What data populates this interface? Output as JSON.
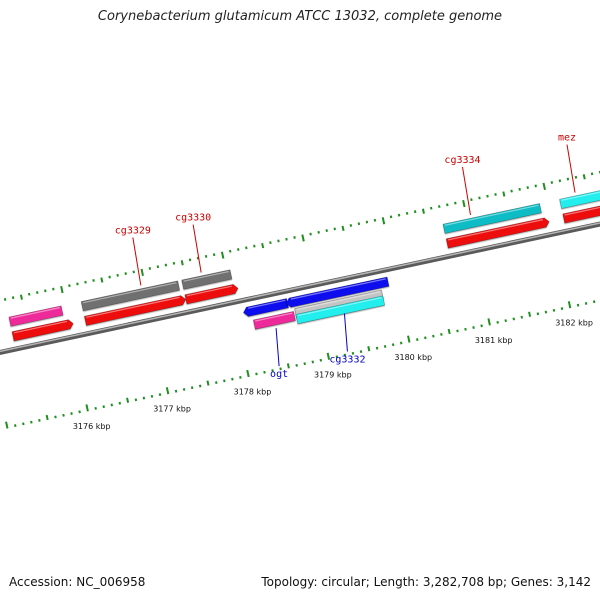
{
  "title": "Corynebacterium glutamicum ATCC 13032, complete genome",
  "footer": {
    "accession": "Accession: NC_006958",
    "summary": "Topology: circular; Length: 3,282,708 bp; Genes: 3,142"
  },
  "colors": {
    "backbone": "#8a8a8a",
    "tick": "#1f8f1f",
    "label_forward": "#cc0000",
    "label_reverse": "#0000cc",
    "cds_red": "#ee1111",
    "pink": "#ee2a9a",
    "grey": "#6f6f6f",
    "light_grey": "#c4c4c4",
    "teal": "#11bcc4",
    "cyan": "#22eeee",
    "blue": "#1111ee"
  },
  "scale": {
    "unit": "kbp",
    "labels": [
      {
        "kbp": 3176,
        "text": "3176 kbp"
      },
      {
        "kbp": 3177,
        "text": "3177 kbp"
      },
      {
        "kbp": 3178,
        "text": "3178 kbp"
      },
      {
        "kbp": 3179,
        "text": "3179 kbp"
      },
      {
        "kbp": 3180,
        "text": "3180 kbp"
      },
      {
        "kbp": 3181,
        "text": "3181 kbp"
      },
      {
        "kbp": 3182,
        "text": "3182 kbp"
      }
    ]
  },
  "features": {
    "top": [
      {
        "start": 3175.3,
        "end": 3175.95,
        "color": "pink"
      },
      {
        "start": 3176.2,
        "end": 3177.4,
        "color": "grey"
      },
      {
        "start": 3177.45,
        "end": 3178.05,
        "color": "grey"
      },
      {
        "start": 3180.7,
        "end": 3181.9,
        "color": "teal"
      },
      {
        "start": 3182.15,
        "end": 3183.4,
        "color": "cyan"
      }
    ],
    "forward": [
      {
        "start": 3175.3,
        "end": 3176.0,
        "color": "cds_red"
      },
      {
        "start": 3176.2,
        "end": 3177.4,
        "color": "cds_red"
      },
      {
        "start": 3177.45,
        "end": 3178.05,
        "color": "cds_red"
      },
      {
        "start": 3180.7,
        "end": 3181.92,
        "color": "cds_red"
      },
      {
        "start": 3182.15,
        "end": 3183.4,
        "color": "cds_red"
      }
    ],
    "reverse": [
      {
        "start": 3178.15,
        "end": 3178.65,
        "color": "blue"
      },
      {
        "start": 3178.68,
        "end": 3179.9,
        "color": "blue"
      }
    ],
    "bottom": [
      {
        "start": 3178.2,
        "end": 3178.7,
        "color": "pink"
      },
      {
        "start": 3178.72,
        "end": 3179.8,
        "color": "light_grey"
      },
      {
        "start": 3178.72,
        "end": 3179.8,
        "color": "cyan"
      }
    ]
  },
  "gene_labels": [
    {
      "name": "cg3329",
      "strand": "forward",
      "kbp": 3176.95
    },
    {
      "name": "cg3330",
      "strand": "forward",
      "kbp": 3177.7
    },
    {
      "name": "cg3334",
      "strand": "forward",
      "kbp": 3181.05
    },
    {
      "name": "mez",
      "strand": "forward",
      "kbp": 3182.35
    },
    {
      "name": "ogt",
      "strand": "reverse",
      "kbp": 3178.45
    },
    {
      "name": "cg3332",
      "strand": "reverse",
      "kbp": 3179.3
    }
  ]
}
